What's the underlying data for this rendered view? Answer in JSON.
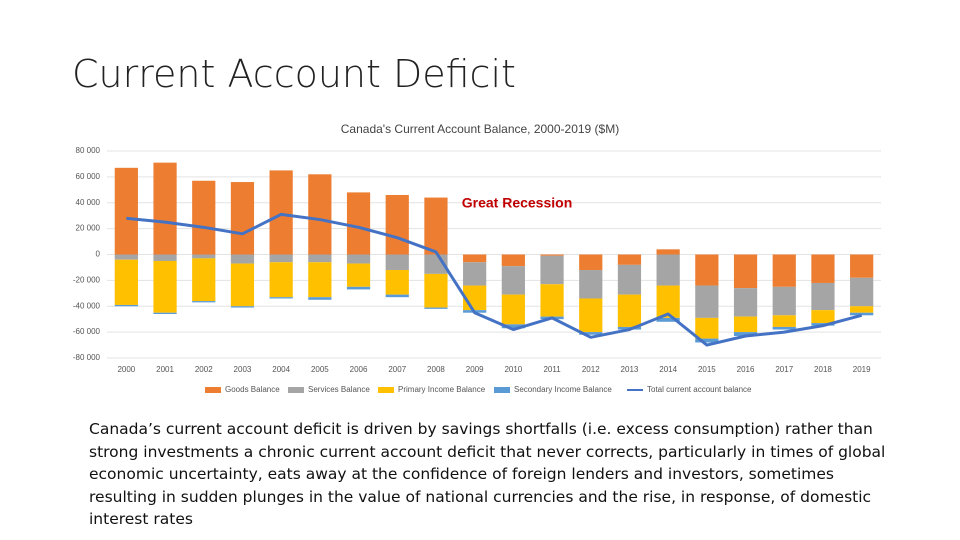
{
  "slide_title": "Current Account Deficit",
  "body": "Canada’s current account deficit is driven by savings shortfalls (i.e. excess consumption) rather than strong investments a chronic current account deficit that never corrects, particularly in times of global economic uncertainty, eats away at the confidence of foreign lenders and investors, sometimes resulting in sudden plunges in the value of national currencies and the rise, in response, of domestic interest rates",
  "chart_data": {
    "type": "bar",
    "stacked": true,
    "grid": true,
    "title": "Canada's Current Account Balance, 2000-2019 ($M)",
    "annotation": "Great Recession",
    "annotation_color": "#c00000",
    "categories": [
      "2000",
      "2001",
      "2002",
      "2003",
      "2004",
      "2005",
      "2006",
      "2007",
      "2008",
      "2009",
      "2010",
      "2011",
      "2012",
      "2013",
      "2014",
      "2015",
      "2016",
      "2017",
      "2018",
      "2019"
    ],
    "ylim": [
      -80000,
      80000
    ],
    "yticks": [
      {
        "value": -80000,
        "label": "-80 000"
      },
      {
        "value": -60000,
        "label": "-60 000"
      },
      {
        "value": -40000,
        "label": "-40 000"
      },
      {
        "value": -20000,
        "label": "-20 000"
      },
      0,
      {
        "value": 20000,
        "label": "20 000"
      },
      {
        "value": 40000,
        "label": "40 000"
      },
      {
        "value": 60000,
        "label": "60 000"
      },
      {
        "value": 80000,
        "label": "80 000"
      }
    ],
    "series": [
      {
        "name": "Goods Balance",
        "color": "#ed7d31",
        "values": [
          67000,
          71000,
          57000,
          56000,
          65000,
          62000,
          48000,
          46000,
          44000,
          -6000,
          -9000,
          -1000,
          -12000,
          -8000,
          4000,
          -24000,
          -26000,
          -25000,
          -22000,
          -18000
        ]
      },
      {
        "name": "Services Balance",
        "color": "#a5a5a5",
        "values": [
          -4000,
          -5000,
          -3000,
          -7000,
          -6000,
          -6000,
          -7000,
          -12000,
          -15000,
          -18000,
          -22000,
          -22000,
          -22000,
          -23000,
          -24000,
          -25000,
          -22000,
          -22000,
          -21000,
          -22000
        ]
      },
      {
        "name": "Primary Income Balance",
        "color": "#ffc000",
        "values": [
          -35000,
          -40000,
          -33000,
          -33000,
          -27000,
          -27000,
          -18000,
          -19000,
          -26000,
          -19000,
          -23000,
          -25000,
          -26000,
          -25000,
          -25000,
          -16000,
          -12000,
          -9000,
          -10000,
          -5000
        ]
      },
      {
        "name": "Secondary Income Balance",
        "color": "#5b9bd5",
        "values": [
          -1000,
          -1000,
          -1000,
          -1000,
          -1000,
          -2000,
          -2000,
          -2000,
          -1000,
          -2000,
          -3000,
          -2000,
          -2000,
          -2000,
          -3000,
          -3000,
          -3000,
          -2000,
          -2000,
          -2000
        ]
      },
      {
        "name": "Total current account balance",
        "color": "#4472c4",
        "type": "line",
        "values": [
          28000,
          25000,
          21000,
          16000,
          31000,
          27000,
          21000,
          13000,
          2000,
          -45000,
          -58000,
          -49000,
          -64000,
          -58000,
          -46000,
          -70000,
          -63000,
          -60000,
          -55000,
          -47000
        ]
      }
    ]
  }
}
